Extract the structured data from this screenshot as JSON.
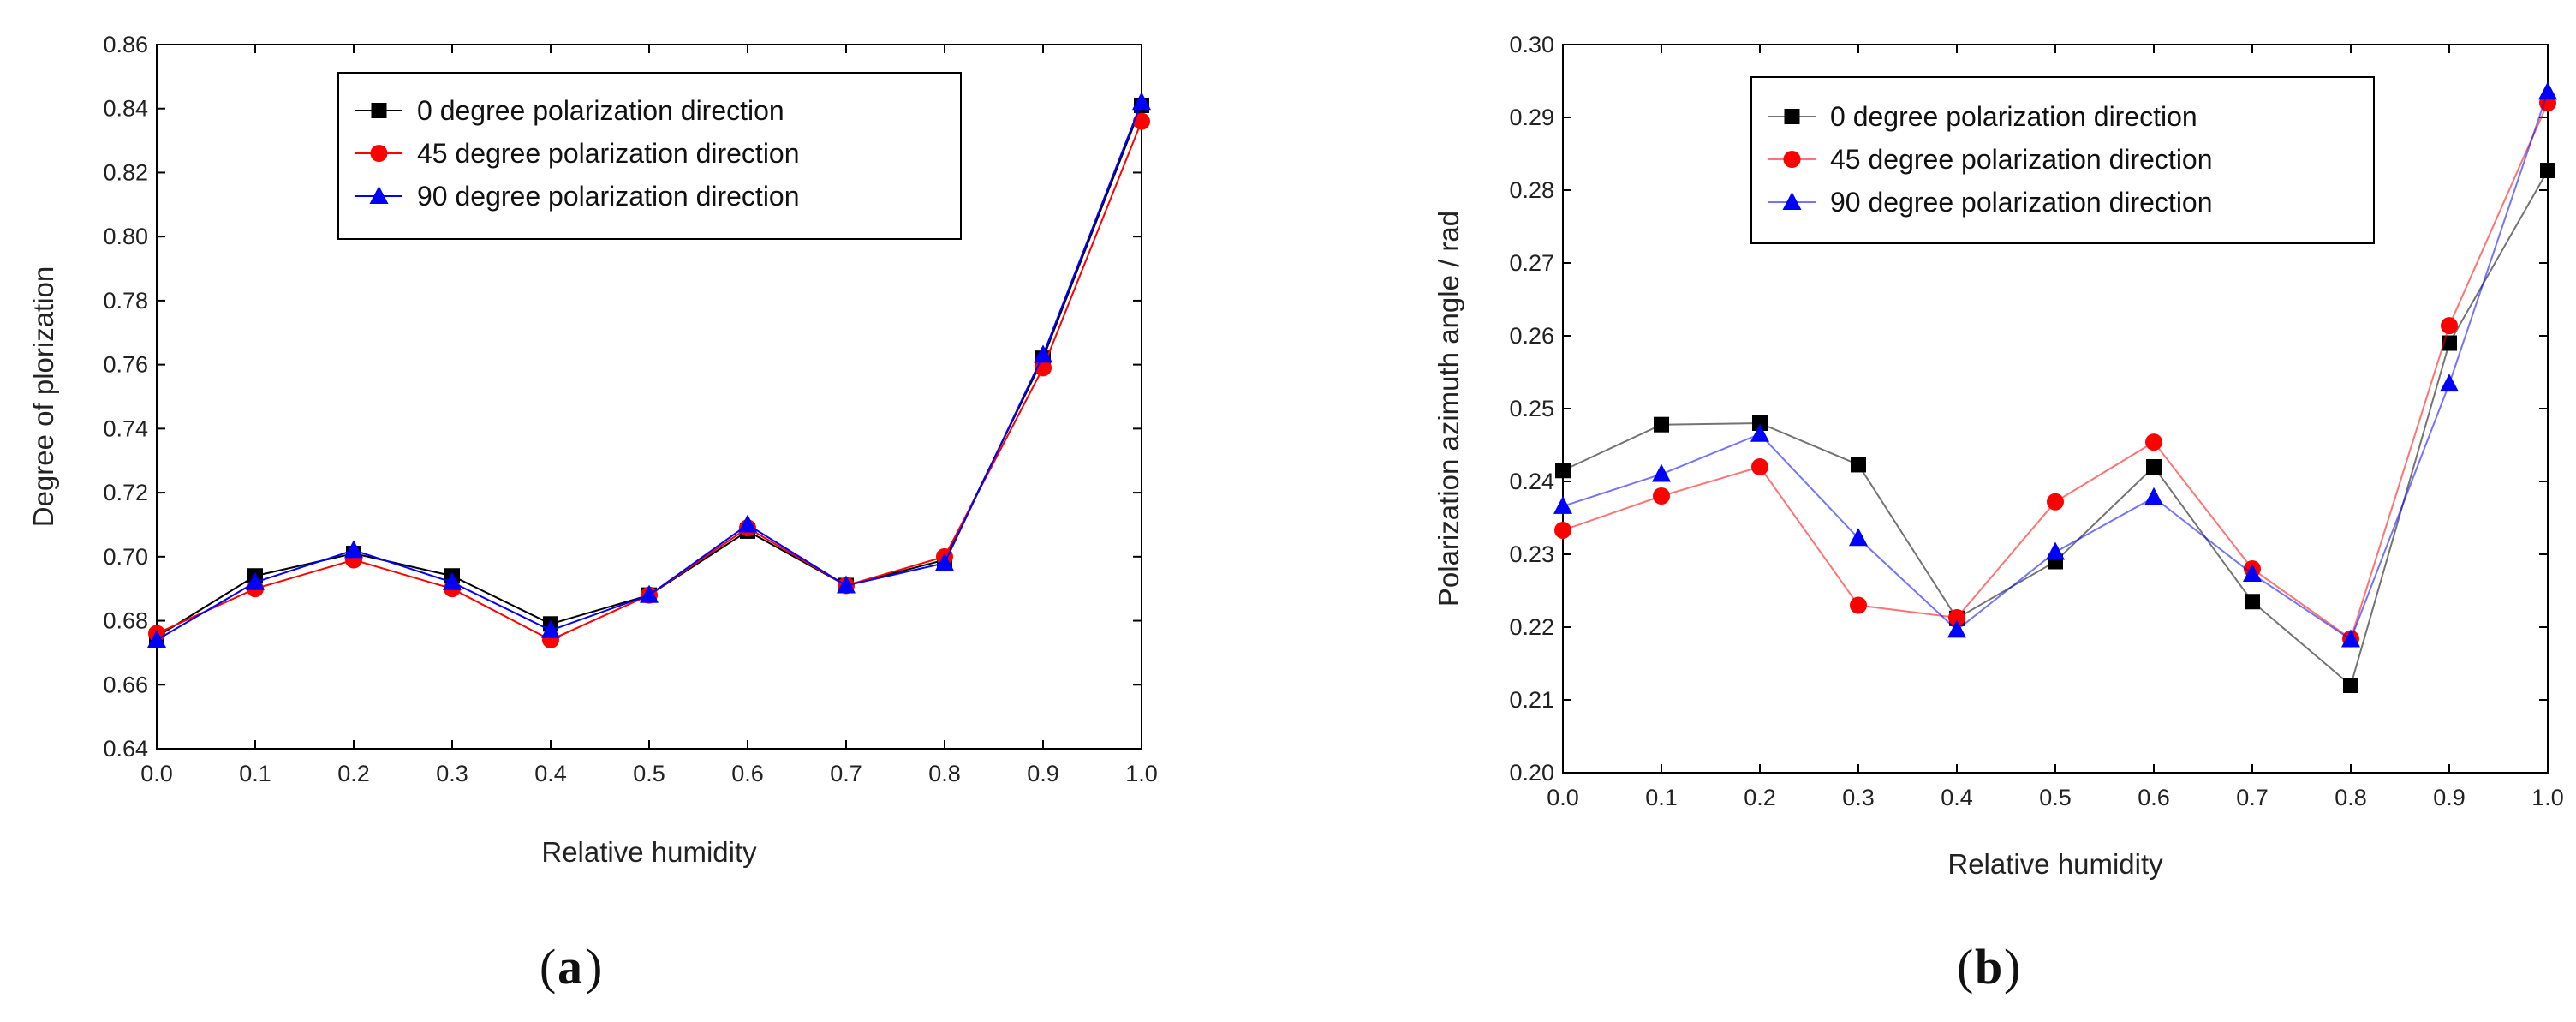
{
  "chart_data": [
    {
      "type": "line",
      "panel_label": "a",
      "xlabel": "Relative humidity",
      "ylabel": "Degree of plorization",
      "x": [
        0.0,
        0.1,
        0.2,
        0.3,
        0.4,
        0.5,
        0.6,
        0.7,
        0.8,
        0.9,
        1.0
      ],
      "xlim": [
        0.0,
        1.0
      ],
      "ylim": [
        0.64,
        0.86
      ],
      "xticks": [
        "0.0",
        "0.1",
        "0.2",
        "0.3",
        "0.4",
        "0.5",
        "0.6",
        "0.7",
        "0.8",
        "0.9",
        "1.0"
      ],
      "yticks": [
        "0.64",
        "0.66",
        "0.68",
        "0.70",
        "0.72",
        "0.74",
        "0.76",
        "0.78",
        "0.80",
        "0.82",
        "0.84",
        "0.86"
      ],
      "legend_position": "top-center",
      "series": [
        {
          "name": "0 degree polarization direction",
          "color": "#000000",
          "marker": "square",
          "values": [
            0.675,
            0.694,
            0.701,
            0.694,
            0.679,
            0.688,
            0.708,
            0.691,
            0.699,
            0.762,
            0.841
          ]
        },
        {
          "name": "45 degree polarization direction",
          "color": "#ff0000",
          "marker": "circle",
          "values": [
            0.676,
            0.69,
            0.699,
            0.69,
            0.674,
            0.688,
            0.709,
            0.691,
            0.7,
            0.759,
            0.836
          ]
        },
        {
          "name": "90 degree polarization direction",
          "color": "#0000ff",
          "marker": "triangle",
          "values": [
            0.674,
            0.692,
            0.702,
            0.692,
            0.677,
            0.688,
            0.71,
            0.691,
            0.698,
            0.763,
            0.842
          ]
        }
      ]
    },
    {
      "type": "line",
      "panel_label": "b",
      "xlabel": "Relative humidity",
      "ylabel": "Polarization azimuth angle / rad",
      "x": [
        0.0,
        0.1,
        0.2,
        0.3,
        0.4,
        0.5,
        0.6,
        0.7,
        0.8,
        0.9,
        1.0
      ],
      "xlim": [
        0.0,
        1.0
      ],
      "ylim": [
        0.2,
        0.3
      ],
      "xticks": [
        "0.0",
        "0.1",
        "0.2",
        "0.3",
        "0.4",
        "0.5",
        "0.6",
        "0.7",
        "0.8",
        "0.9",
        "1.0"
      ],
      "yticks": [
        "0.20",
        "0.21",
        "0.22",
        "0.23",
        "0.24",
        "0.25",
        "0.26",
        "0.27",
        "0.28",
        "0.29",
        "0.30"
      ],
      "legend_position": "top-center",
      "series": [
        {
          "name": "0 degree polarization direction",
          "color": "#000000",
          "marker": "square",
          "values": [
            0.2415,
            0.2478,
            0.248,
            0.2423,
            0.2212,
            0.229,
            0.242,
            0.2235,
            0.212,
            0.259,
            0.2827
          ]
        },
        {
          "name": "45 degree polarization direction",
          "color": "#ff0000",
          "marker": "circle",
          "values": [
            0.2333,
            0.238,
            0.242,
            0.223,
            0.2213,
            0.2372,
            0.2454,
            0.228,
            0.2184,
            0.2614,
            0.292
          ]
        },
        {
          "name": "90 degree polarization direction",
          "color": "#0000ff",
          "marker": "triangle",
          "values": [
            0.2366,
            0.241,
            0.2465,
            0.2322,
            0.2196,
            0.2303,
            0.2378,
            0.2273,
            0.2183,
            0.2534,
            0.2935
          ]
        }
      ]
    }
  ]
}
